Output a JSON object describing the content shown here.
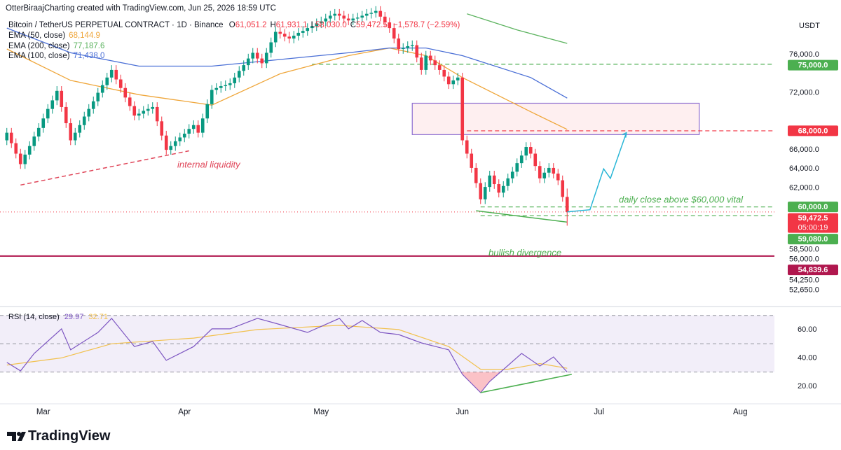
{
  "chart_data": {
    "type": "candlestick",
    "header": "OtterBiraajCharting created with TradingView.com, Jun 25, 2026 18:59 UTC",
    "symbol": "Bitcoin / TetherUS PERPETUAL CONTRACT · 1D · Binance",
    "ohlc_legend": [
      {
        "key": "O",
        "value": 61051.2,
        "label": "61,051.2"
      },
      {
        "key": "H",
        "value": 61931.1,
        "label": "61,931.1"
      },
      {
        "key": "L",
        "value": 58030.0,
        "label": "58,030.0"
      },
      {
        "key": "C",
        "value": 59472.5,
        "label": "59,472.5"
      }
    ],
    "change": {
      "value": -1578.7,
      "label": "−1,578.7"
    },
    "change_pct": {
      "value": -2.59,
      "label": "(−2.59%)"
    },
    "currency": "USDT",
    "xlim": [
      -1.5,
      168.5
    ],
    "xticks": [
      {
        "value": 8,
        "label": "Mar"
      },
      {
        "value": 39,
        "label": "Apr"
      },
      {
        "value": 69,
        "label": "May"
      },
      {
        "value": 100,
        "label": "Jun"
      },
      {
        "value": 130,
        "label": "Jul"
      },
      {
        "value": 161,
        "label": "Aug"
      }
    ],
    "ylim": [
      49750,
      81750
    ],
    "yticks": [
      {
        "value": 76000,
        "label": "76,000.0"
      },
      {
        "value": 72000,
        "label": "72,000.0"
      },
      {
        "value": 66000,
        "label": "66,000.0"
      },
      {
        "value": 64000,
        "label": "64,000.0"
      },
      {
        "value": 62000,
        "label": "62,000.0"
      },
      {
        "value": 58500,
        "label": "58,500.0"
      },
      {
        "value": 56000,
        "label": "56,000.0"
      },
      {
        "value": 54250,
        "label": "54,250.0"
      },
      {
        "value": 52650,
        "label": "52,650.0"
      }
    ],
    "up_color": "#089981",
    "down_color": "#f23645",
    "candles": [
      [
        67000,
        68300,
        66500,
        67800
      ],
      [
        67800,
        68300,
        66200,
        66700
      ],
      [
        66700,
        67200,
        65100,
        65600
      ],
      [
        65600,
        66100,
        64000,
        64500
      ],
      [
        64500,
        66000,
        64000,
        65500
      ],
      [
        65500,
        66900,
        65000,
        66400
      ],
      [
        66400,
        67900,
        65900,
        67400
      ],
      [
        67400,
        68800,
        66900,
        68300
      ],
      [
        68300,
        69800,
        67800,
        69300
      ],
      [
        69300,
        70800,
        68800,
        70300
      ],
      [
        70300,
        71700,
        69800,
        71200
      ],
      [
        71200,
        72700,
        70700,
        72200
      ],
      [
        72200,
        72700,
        70000,
        70500
      ],
      [
        70500,
        71000,
        68300,
        68800
      ],
      [
        68800,
        69300,
        66500,
        67000
      ],
      [
        67000,
        68300,
        66500,
        67800
      ],
      [
        67800,
        69100,
        67300,
        68600
      ],
      [
        68600,
        70000,
        68100,
        69500
      ],
      [
        69500,
        70800,
        69000,
        70300
      ],
      [
        70300,
        71600,
        69800,
        71100
      ],
      [
        71100,
        72500,
        70600,
        72000
      ],
      [
        72000,
        73300,
        71500,
        72800
      ],
      [
        72800,
        74100,
        72300,
        73600
      ],
      [
        73600,
        74900,
        73100,
        74400
      ],
      [
        74400,
        74900,
        72900,
        73400
      ],
      [
        73400,
        73900,
        72000,
        72500
      ],
      [
        72500,
        73000,
        71000,
        71500
      ],
      [
        71500,
        72000,
        70100,
        70600
      ],
      [
        70600,
        71100,
        69100,
        69600
      ],
      [
        69600,
        70300,
        69100,
        69800
      ],
      [
        69800,
        70600,
        69300,
        70100
      ],
      [
        70100,
        70800,
        69600,
        70300
      ],
      [
        70300,
        71000,
        69800,
        70500
      ],
      [
        70500,
        71000,
        68500,
        69000
      ],
      [
        69000,
        69500,
        67000,
        67500
      ],
      [
        67500,
        68000,
        65500,
        66000
      ],
      [
        66000,
        66900,
        65500,
        66400
      ],
      [
        66400,
        67400,
        65900,
        66900
      ],
      [
        66900,
        67800,
        66400,
        67300
      ],
      [
        67300,
        68200,
        66800,
        67700
      ],
      [
        67700,
        68700,
        67200,
        68200
      ],
      [
        68200,
        69100,
        67700,
        68600
      ],
      [
        68600,
        69100,
        67300,
        67800
      ],
      [
        67800,
        69800,
        67300,
        69300
      ],
      [
        69300,
        71300,
        68800,
        70800
      ],
      [
        70800,
        72800,
        70300,
        72300
      ],
      [
        72300,
        73000,
        71800,
        72500
      ],
      [
        72500,
        73200,
        72000,
        72700
      ],
      [
        72700,
        73300,
        72200,
        72800
      ],
      [
        72800,
        73500,
        72300,
        73000
      ],
      [
        73000,
        74100,
        72500,
        73600
      ],
      [
        73600,
        74800,
        73100,
        74300
      ],
      [
        74300,
        75400,
        73800,
        74900
      ],
      [
        74900,
        76100,
        74400,
        75600
      ],
      [
        75600,
        76700,
        75100,
        76200
      ],
      [
        76200,
        76700,
        75100,
        75600
      ],
      [
        75600,
        76100,
        74600,
        75100
      ],
      [
        75100,
        76700,
        74600,
        76200
      ],
      [
        76200,
        77800,
        75700,
        77300
      ],
      [
        77300,
        78900,
        76800,
        78400
      ],
      [
        78400,
        78900,
        77700,
        78200
      ],
      [
        78200,
        78700,
        77400,
        77900
      ],
      [
        77900,
        78400,
        77200,
        77700
      ],
      [
        77700,
        78500,
        77200,
        78000
      ],
      [
        78000,
        78800,
        77500,
        78300
      ],
      [
        78300,
        79000,
        77800,
        78500
      ],
      [
        78500,
        79300,
        78000,
        78800
      ],
      [
        78800,
        79500,
        78300,
        79000
      ],
      [
        79000,
        79800,
        78500,
        79300
      ],
      [
        79300,
        80000,
        78800,
        79500
      ],
      [
        79500,
        80300,
        79000,
        79800
      ],
      [
        79800,
        80600,
        79300,
        80100
      ],
      [
        80100,
        80800,
        79600,
        80300
      ],
      [
        80300,
        80800,
        79600,
        80100
      ],
      [
        80100,
        80600,
        79300,
        79800
      ],
      [
        79800,
        80300,
        79100,
        79600
      ],
      [
        79600,
        80300,
        79100,
        79800
      ],
      [
        79800,
        80400,
        79300,
        79900
      ],
      [
        79900,
        80600,
        79400,
        80100
      ],
      [
        80100,
        80800,
        79600,
        80300
      ],
      [
        80300,
        80900,
        79800,
        80400
      ],
      [
        80400,
        81100,
        79900,
        80600
      ],
      [
        80600,
        81100,
        79500,
        80000
      ],
      [
        80000,
        80500,
        78900,
        79400
      ],
      [
        79400,
        79900,
        78300,
        78800
      ],
      [
        78800,
        79300,
        77200,
        77700
      ],
      [
        77700,
        78200,
        76100,
        76600
      ],
      [
        76600,
        77200,
        76100,
        76700
      ],
      [
        76700,
        77400,
        76200,
        76900
      ],
      [
        76900,
        77500,
        76400,
        77000
      ],
      [
        77000,
        77500,
        75200,
        75700
      ],
      [
        75700,
        76200,
        73900,
        74400
      ],
      [
        74400,
        76400,
        73900,
        75900
      ],
      [
        75900,
        76400,
        74900,
        75400
      ],
      [
        75400,
        75900,
        74400,
        74900
      ],
      [
        74900,
        75400,
        73900,
        74400
      ],
      [
        74400,
        74900,
        73200,
        73700
      ],
      [
        73700,
        74200,
        72400,
        72900
      ],
      [
        72900,
        73800,
        72400,
        73300
      ],
      [
        73300,
        74100,
        72800,
        73600
      ],
      [
        73600,
        74100,
        66500,
        67000
      ],
      [
        67000,
        67500,
        65100,
        65600
      ],
      [
        65600,
        66100,
        63600,
        64100
      ],
      [
        64100,
        64600,
        62000,
        62500
      ],
      [
        62500,
        63000,
        60300,
        60800
      ],
      [
        60800,
        62600,
        60300,
        62100
      ],
      [
        62100,
        63800,
        61600,
        63300
      ],
      [
        63300,
        63800,
        61900,
        62400
      ],
      [
        62400,
        62900,
        61000,
        61500
      ],
      [
        61500,
        62700,
        61000,
        62200
      ],
      [
        62200,
        63500,
        61700,
        63000
      ],
      [
        63000,
        64200,
        62500,
        63700
      ],
      [
        63700,
        65100,
        63200,
        64600
      ],
      [
        64600,
        65900,
        64100,
        65400
      ],
      [
        65400,
        66800,
        64900,
        66300
      ],
      [
        66300,
        66800,
        65100,
        65600
      ],
      [
        65600,
        66100,
        63800,
        64300
      ],
      [
        64300,
        64800,
        62500,
        63000
      ],
      [
        63000,
        64100,
        62500,
        63600
      ],
      [
        63600,
        64600,
        63100,
        64100
      ],
      [
        64100,
        64600,
        63000,
        63500
      ],
      [
        63500,
        64000,
        62300,
        62800
      ],
      [
        62800,
        63300,
        60551.2,
        61051.2
      ],
      [
        61051.2,
        61931.1,
        58030.0,
        59472.5
      ]
    ],
    "ema": [
      {
        "name": "EMA (50, close)",
        "value": {
          "value": 68144.9,
          "label": "68,144.9"
        },
        "color": "#efa63a",
        "x": [
          0,
          14,
          29,
          45,
          60,
          75,
          84,
          92,
          100,
          115,
          123
        ],
        "values": [
          76600,
          73300,
          71800,
          70700,
          74000,
          75900,
          76700,
          75900,
          73600,
          70000,
          68144.9
        ]
      },
      {
        "name": "EMA (200, close)",
        "value": {
          "value": 77187.6,
          "label": "77,187.6"
        },
        "color": "#5cb35f",
        "x": [
          101,
          112,
          123
        ],
        "values": [
          80300,
          78600,
          77187.6
        ]
      },
      {
        "name": "EMA (100, close)",
        "value": {
          "value": 71438.0,
          "label": "71,438.0"
        },
        "color": "#4a6fd6",
        "x": [
          0,
          14,
          29,
          45,
          60,
          75,
          84,
          92,
          100,
          115,
          123
        ],
        "values": [
          78800,
          76200,
          74800,
          74800,
          75500,
          76200,
          76700,
          76700,
          75900,
          73600,
          71438.0
        ]
      }
    ],
    "zone": {
      "from": 89,
      "to": 152,
      "bottom": 67600,
      "top": 70900,
      "color": "#8e6fd1"
    },
    "levels": [
      {
        "value": 75000,
        "label": "75,000.0",
        "color": "#4caf50",
        "style": "dashed",
        "from": 67
      },
      {
        "value": 68000,
        "label": "68,000.0",
        "color": "#f23645",
        "style": "dashed",
        "from": 101
      },
      {
        "value": 60000,
        "label": "60,000.0",
        "color": "#4caf50",
        "style": "dashed",
        "from": 104
      },
      {
        "value": 59080,
        "label": "59,080.0",
        "color": "#4caf50",
        "style": "dashed",
        "from": 104
      },
      {
        "value": 54839.6,
        "label": "54,839.6",
        "color": "#b0174e",
        "style": "solid",
        "from": -1.5
      }
    ],
    "current": {
      "value": 59472.5,
      "label": "59,472.5",
      "countdown": "05:00:19",
      "color": "#f23645"
    },
    "trendlines": [
      {
        "x": [
          3,
          40
        ],
        "values": [
          62300,
          65900
        ],
        "color": "#e0475a",
        "style": "dashed"
      },
      {
        "x": [
          103,
          123
        ],
        "values": [
          59600,
          58400
        ],
        "color": "#4caf50",
        "style": "solid"
      }
    ],
    "projection": {
      "x": [
        123,
        128,
        131,
        132.5,
        136
      ],
      "values": [
        59472.5,
        59700,
        64000,
        63000,
        67800
      ],
      "color": "#29b6d6"
    },
    "annotations": [
      "internal liquidity",
      "daily close above $60,000 vital",
      "bullish divergence"
    ],
    "rsi": {
      "title": "RSI (14, close)",
      "value": {
        "value": 29.97,
        "label": "29.97"
      },
      "ma_value": {
        "value": 32.71,
        "label": "32.71"
      },
      "color": "#7e57c2",
      "ma_color": "#f2c14e",
      "ylim": [
        8.6,
        73.8
      ],
      "yticks": [
        {
          "value": 60,
          "label": "60.00"
        },
        {
          "value": 40,
          "label": "40.00"
        },
        {
          "value": 20,
          "label": "20.00"
        }
      ],
      "levels": [
        70,
        50,
        30
      ],
      "x": [
        0,
        3,
        6,
        12,
        14,
        20,
        23,
        28,
        32,
        35,
        41,
        45,
        49,
        55,
        59,
        66,
        73,
        75,
        78,
        82,
        86,
        91,
        97,
        100,
        104,
        106,
        109,
        113,
        117,
        120,
        123
      ],
      "values": [
        36.8,
        30.9,
        43.2,
        60.5,
        45.7,
        58,
        67.9,
        48,
        51.6,
        38.3,
        48,
        60.5,
        60.5,
        67.9,
        64.4,
        58,
        67.9,
        60.5,
        66.4,
        58,
        56.5,
        50.6,
        45.7,
        28.4,
        15.5,
        23.4,
        31.8,
        43.2,
        34.3,
        40.7,
        29.97
      ],
      "ma_x": [
        0,
        12,
        23,
        41,
        55,
        73,
        86,
        97,
        104,
        110,
        117,
        123
      ],
      "ma_values": [
        35,
        40,
        50,
        54,
        60,
        63,
        60,
        48,
        32,
        32,
        36,
        32.71
      ],
      "divergence": {
        "x": [
          104,
          124
        ],
        "values": [
          15.5,
          28.4
        ],
        "color": "#4caf50"
      }
    },
    "footer": "TradingView"
  }
}
